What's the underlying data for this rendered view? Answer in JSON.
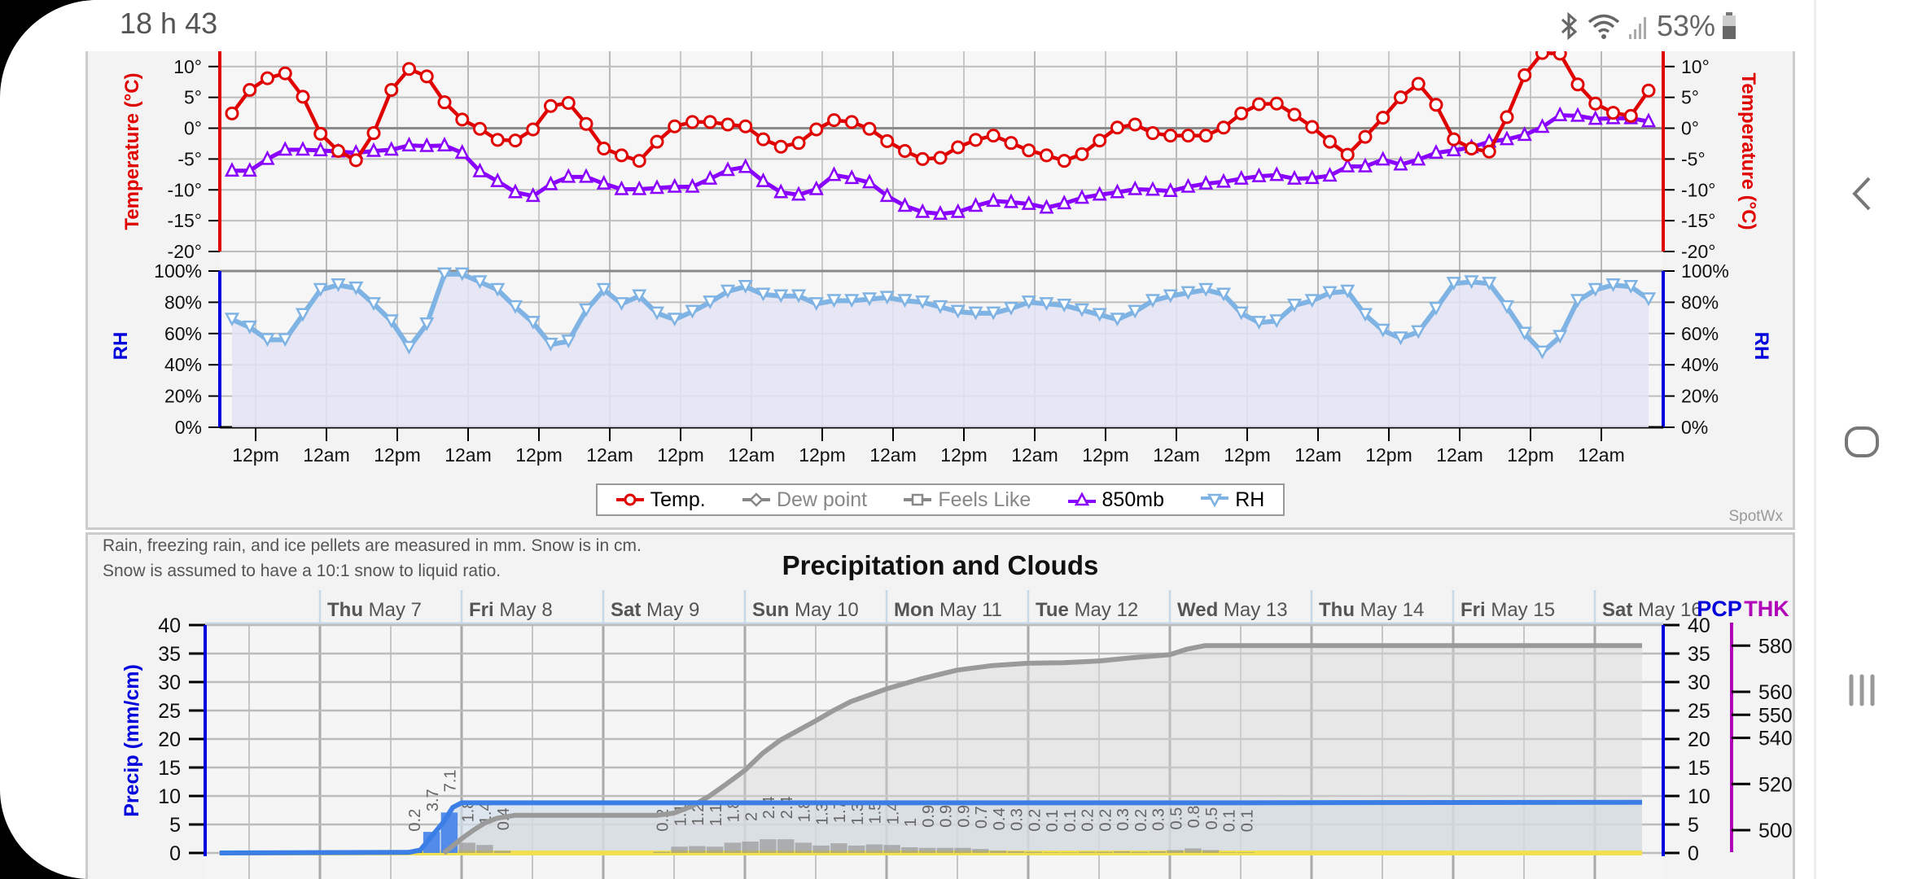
{
  "status_bar": {
    "time": "18 h 43",
    "battery_pct": "53%"
  },
  "nav": {
    "back": "back-icon",
    "home": "home-icon",
    "recents": "recents-icon"
  },
  "legend": [
    {
      "label": "Temp.",
      "color": "#e00000",
      "marker": "circle"
    },
    {
      "label": "Dew point",
      "color": "#888888",
      "marker": "diamond"
    },
    {
      "label": "Feels Like",
      "color": "#888888",
      "marker": "square"
    },
    {
      "label": "850mb",
      "color": "#8a00ff",
      "marker": "triangle-up"
    },
    {
      "label": "RH",
      "color": "#7fb3e3",
      "marker": "triangle-down"
    }
  ],
  "attribution": "SpotWx",
  "precip_notes": [
    "Rain, freezing rain, and ice pellets are measured in mm. Snow is in cm.",
    "Snow is assumed to have a 10:1 snow to liquid ratio."
  ],
  "chart_data": [
    {
      "type": "line",
      "x_step_hours": 3,
      "x_tick_first_hour": 4,
      "x_tick_step_hours": 12,
      "x_tick_labels": [
        "12pm",
        "12am",
        "12pm",
        "12am",
        "12pm",
        "12am",
        "12pm",
        "12am",
        "12pm",
        "12am",
        "12pm",
        "12am",
        "12pm",
        "12am",
        "12pm",
        "12am",
        "12pm",
        "12am",
        "12pm",
        "12am"
      ],
      "temp_axis": {
        "label": "Temperature (°C)",
        "ticks": [
          10,
          5,
          0,
          -5,
          -10,
          -15,
          -20
        ],
        "tick_labels": [
          "10°",
          "5°",
          "0°",
          "-5°",
          "-10°",
          "-15°",
          "-20°"
        ],
        "ylim": [
          -20,
          12.5
        ]
      },
      "rh_axis": {
        "label": "RH",
        "ticks": [
          100,
          80,
          60,
          40,
          20,
          0
        ],
        "tick_labels": [
          "100%",
          "80%",
          "60%",
          "40%",
          "20%",
          "0%"
        ],
        "ylim": [
          0,
          100
        ]
      },
      "series": [
        {
          "name": "Temp.",
          "color": "#e00000",
          "values": [
            2.4,
            6.2,
            8.1,
            8.9,
            5.1,
            -0.9,
            -3.7,
            -5.2,
            -0.8,
            6.2,
            9.6,
            8.4,
            4.2,
            1.4,
            -0.1,
            -1.9,
            -2,
            -0.2,
            3.6,
            4.1,
            0.7,
            -3.3,
            -4.4,
            -5.3,
            -2.2,
            0.3,
            1,
            1,
            0.6,
            0.3,
            -1.8,
            -3,
            -2.4,
            -0.2,
            1.3,
            1,
            -0.1,
            -2.1,
            -3.7,
            -5,
            -4.8,
            -3.1,
            -1.9,
            -1.2,
            -2.4,
            -3.6,
            -4.4,
            -5.3,
            -4.2,
            -2,
            0.1,
            0.6,
            -0.8,
            -1.2,
            -1.2,
            -1.2,
            0.1,
            2.4,
            3.9,
            4,
            2.2,
            0.2,
            -2.2,
            -4.3,
            -1.4,
            1.7,
            5,
            7.2,
            3.8,
            -1.8,
            -3.3,
            -3.8,
            1.8,
            8.6,
            12.2,
            12.1,
            7.1,
            4,
            2.5,
            2,
            6.1
          ]
        },
        {
          "name": "850mb",
          "color": "#8a00ff",
          "values": [
            -6.9,
            -6.9,
            -5,
            -3.5,
            -3.5,
            -3.6,
            -3.8,
            -4,
            -3.7,
            -3.5,
            -2.8,
            -2.9,
            -2.8,
            -4,
            -7,
            -8.6,
            -10.4,
            -11,
            -9.1,
            -7.9,
            -7.9,
            -9,
            -9.9,
            -9.9,
            -9.7,
            -9.5,
            -9.5,
            -8.2,
            -6.8,
            -6.3,
            -8.6,
            -10.4,
            -10.8,
            -9.9,
            -7.6,
            -8.1,
            -8.8,
            -11,
            -12.6,
            -13.6,
            -13.9,
            -13.6,
            -12.6,
            -11.8,
            -12,
            -12.3,
            -12.9,
            -12.2,
            -11.3,
            -10.8,
            -10.4,
            -9.9,
            -10,
            -10.2,
            -9.5,
            -9,
            -8.7,
            -8.2,
            -7.8,
            -7.6,
            -8.2,
            -8.1,
            -7.7,
            -6.2,
            -6.2,
            -5.1,
            -5.9,
            -5.1,
            -4,
            -3.6,
            -3.1,
            -2.2,
            -1.8,
            -1.1,
            0.2,
            2.1,
            2,
            1.5,
            1.6,
            1.6,
            1.1
          ]
        },
        {
          "name": "RH",
          "color": "#7fb3e3",
          "values": [
            69,
            64,
            56,
            56,
            72,
            88,
            91,
            89,
            79,
            68,
            51,
            66,
            98,
            98,
            93,
            88,
            77,
            67,
            53,
            55,
            75,
            88,
            79,
            84,
            73,
            69,
            74,
            80,
            87,
            90,
            85,
            84,
            84,
            79,
            81,
            81,
            82,
            83,
            81,
            80,
            77,
            74,
            73,
            73,
            76,
            80,
            79,
            78,
            75,
            72,
            69,
            74,
            81,
            84,
            86,
            88,
            85,
            73,
            67,
            68,
            78,
            81,
            86,
            87,
            72,
            62,
            57,
            61,
            76,
            92,
            93,
            92,
            77,
            60,
            48,
            58,
            81,
            88,
            91,
            90,
            82
          ]
        }
      ]
    },
    {
      "type": "bar",
      "title": "Precipitation and Clouds",
      "ylabel": "Precip (mm/cm)",
      "ylim": [
        0,
        40
      ],
      "y_ticks": [
        40,
        35,
        30,
        25,
        20,
        15,
        10,
        5,
        0
      ],
      "right_axis_pcp": {
        "label": "PCP",
        "ticks": [
          40,
          35,
          30,
          25,
          20,
          15,
          10,
          5,
          0
        ]
      },
      "right_axis_thk": {
        "label": "THK",
        "ticks": [
          580,
          560,
          550,
          540,
          520,
          500
        ]
      },
      "x_units": "hours from Thu May 7 00:00",
      "xlim": [
        -19.4,
        227.8
      ],
      "days": [
        {
          "dow": "Thu",
          "date": "May 7"
        },
        {
          "dow": "Fri",
          "date": "May 8"
        },
        {
          "dow": "Sat",
          "date": "May 9"
        },
        {
          "dow": "Sun",
          "date": "May 10"
        },
        {
          "dow": "Mon",
          "date": "May 11"
        },
        {
          "dow": "Tue",
          "date": "May 12"
        },
        {
          "dow": "Wed",
          "date": "May 13"
        },
        {
          "dow": "Thu",
          "date": "May 14"
        },
        {
          "dow": "Fri",
          "date": "May 15"
        },
        {
          "dow": "Sat",
          "date": "May 16"
        }
      ],
      "bars": [
        {
          "h": 16,
          "v": 0.2,
          "label": "0.2",
          "type": "snow"
        },
        {
          "h": 19,
          "v": 3.7,
          "label": "3.7",
          "type": "snow"
        },
        {
          "h": 22,
          "v": 7.1,
          "label": "7.1",
          "type": "snow"
        },
        {
          "h": 25,
          "v": 1.8,
          "label": "1.8",
          "type": "rain"
        },
        {
          "h": 28,
          "v": 1.4,
          "label": "1.4",
          "type": "rain"
        },
        {
          "h": 31,
          "v": 0.4,
          "label": "0.4",
          "type": "rain"
        },
        {
          "h": 58,
          "v": 0.2,
          "label": "0.2",
          "type": "rain"
        },
        {
          "h": 61,
          "v": 1.1,
          "label": "1.1",
          "type": "rain"
        },
        {
          "h": 64,
          "v": 1.2,
          "label": "1.2",
          "type": "rain"
        },
        {
          "h": 67,
          "v": 1.1,
          "label": "1.1",
          "type": "rain"
        },
        {
          "h": 70,
          "v": 1.8,
          "label": "1.8",
          "type": "rain"
        },
        {
          "h": 73,
          "v": 2,
          "label": "2",
          "type": "rain"
        },
        {
          "h": 76,
          "v": 2.4,
          "label": "2.4",
          "type": "rain"
        },
        {
          "h": 79,
          "v": 2.4,
          "label": "2.4",
          "type": "rain"
        },
        {
          "h": 82,
          "v": 1.8,
          "label": "1.8",
          "type": "rain"
        },
        {
          "h": 85,
          "v": 1.3,
          "label": "1.3",
          "type": "rain"
        },
        {
          "h": 88,
          "v": 1.7,
          "label": "1.7",
          "type": "rain"
        },
        {
          "h": 91,
          "v": 1.3,
          "label": "1.3",
          "type": "rain"
        },
        {
          "h": 94,
          "v": 1.5,
          "label": "1.5",
          "type": "rain"
        },
        {
          "h": 97,
          "v": 1.4,
          "label": "1.4",
          "type": "rain"
        },
        {
          "h": 100,
          "v": 1,
          "label": "1",
          "type": "rain"
        },
        {
          "h": 103,
          "v": 0.9,
          "label": "0.9",
          "type": "rain"
        },
        {
          "h": 106,
          "v": 0.9,
          "label": "0.9",
          "type": "rain"
        },
        {
          "h": 109,
          "v": 0.9,
          "label": "0.9",
          "type": "rain"
        },
        {
          "h": 112,
          "v": 0.7,
          "label": "0.7",
          "type": "rain"
        },
        {
          "h": 115,
          "v": 0.4,
          "label": "0.4",
          "type": "rain"
        },
        {
          "h": 118,
          "v": 0.3,
          "label": "0.3",
          "type": "rain"
        },
        {
          "h": 121,
          "v": 0.2,
          "label": "0.2",
          "type": "rain"
        },
        {
          "h": 124,
          "v": 0.1,
          "label": "0.1",
          "type": "rain"
        },
        {
          "h": 127,
          "v": 0.1,
          "label": "0.1",
          "type": "rain"
        },
        {
          "h": 130,
          "v": 0.2,
          "label": "0.2",
          "type": "rain"
        },
        {
          "h": 133,
          "v": 0.2,
          "label": "0.2",
          "type": "rain"
        },
        {
          "h": 136,
          "v": 0.3,
          "label": "0.3",
          "type": "rain"
        },
        {
          "h": 139,
          "v": 0.2,
          "label": "0.2",
          "type": "rain"
        },
        {
          "h": 142,
          "v": 0.3,
          "label": "0.3",
          "type": "rain"
        },
        {
          "h": 145,
          "v": 0.5,
          "label": "0.5",
          "type": "rain"
        },
        {
          "h": 148,
          "v": 0.8,
          "label": "0.8",
          "type": "rain"
        },
        {
          "h": 151,
          "v": 0.5,
          "label": "0.5",
          "type": "rain"
        },
        {
          "h": 154,
          "v": 0.1,
          "label": "0.1",
          "type": "rain"
        },
        {
          "h": 157,
          "v": 0.1,
          "label": "0.1",
          "type": "rain"
        }
      ],
      "lines": [
        {
          "name": "accumulated total",
          "color": "#9a9a9a",
          "points": [
            [
              21,
              0
            ],
            [
              24,
              2.5
            ],
            [
              26,
              4
            ],
            [
              28,
              5.3
            ],
            [
              30,
              6.1
            ],
            [
              33,
              6.6
            ],
            [
              57,
              6.6
            ],
            [
              60,
              7
            ],
            [
              63,
              8.2
            ],
            [
              66,
              10
            ],
            [
              69,
              12.2
            ],
            [
              72,
              14.5
            ],
            [
              75,
              17.5
            ],
            [
              78,
              19.8
            ],
            [
              81,
              21.5
            ],
            [
              84,
              23.2
            ],
            [
              87,
              25
            ],
            [
              90,
              26.6
            ],
            [
              96,
              28.8
            ],
            [
              102,
              30.6
            ],
            [
              108,
              32.1
            ],
            [
              114,
              32.9
            ],
            [
              120,
              33.3
            ],
            [
              126,
              33.4
            ],
            [
              132,
              33.7
            ],
            [
              138,
              34.3
            ],
            [
              144,
              34.8
            ],
            [
              147,
              35.8
            ],
            [
              150,
              36.4
            ],
            [
              224,
              36.4
            ]
          ]
        },
        {
          "name": "accumulated snow",
          "color": "#3b7ee6",
          "points": [
            [
              -17,
              0
            ],
            [
              15,
              0.1
            ],
            [
              17,
              0.5
            ],
            [
              19,
              3
            ],
            [
              21,
              5.5
            ],
            [
              22.5,
              8
            ],
            [
              24,
              8.8
            ],
            [
              150,
              8.8
            ],
            [
              224,
              8.9
            ]
          ]
        },
        {
          "name": "baseline",
          "color": "#f0e050",
          "points": [
            [
              -17,
              0
            ],
            [
              224,
              0
            ]
          ]
        }
      ]
    }
  ]
}
